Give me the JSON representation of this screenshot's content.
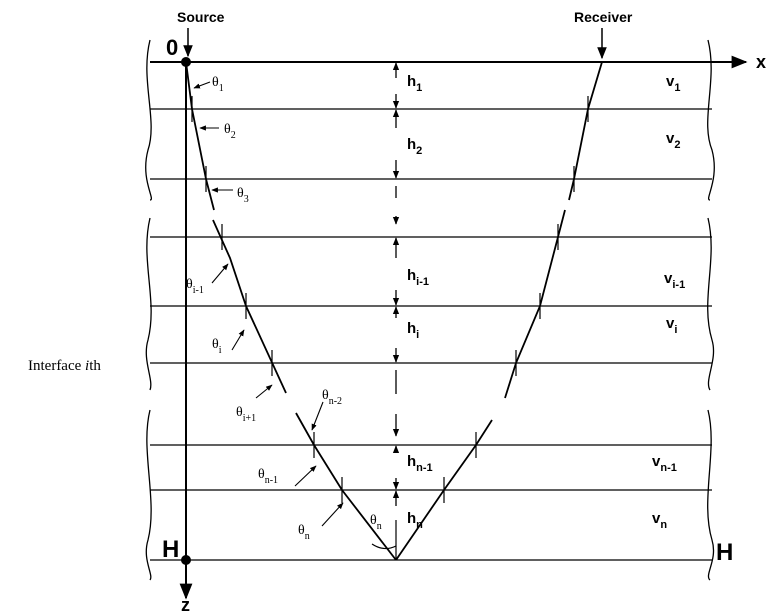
{
  "labels": {
    "source": "Source",
    "receiver": "Receiver",
    "origin": "0",
    "x_axis": "x",
    "z_axis": "z",
    "depth_left": "H",
    "depth_right": "H",
    "interface_prefix": "Interface ",
    "interface_i": "i",
    "interface_suffix": "th"
  },
  "layers": [
    {
      "h": "h",
      "h_sub": "1",
      "v": "v",
      "v_sub": "1"
    },
    {
      "h": "h",
      "h_sub": "2",
      "v": "v",
      "v_sub": "2"
    },
    {
      "h": "h",
      "h_sub": "i-1",
      "v": "v",
      "v_sub": "i-1"
    },
    {
      "h": "h",
      "h_sub": "i",
      "v": "v",
      "v_sub": "i"
    },
    {
      "h": "h",
      "h_sub": "n-1",
      "v": "v",
      "v_sub": "n-1"
    },
    {
      "h": "h",
      "h_sub": "n",
      "v": "v",
      "v_sub": "n"
    }
  ],
  "angles": [
    {
      "sym": "θ",
      "sub": "1"
    },
    {
      "sym": "θ",
      "sub": "2"
    },
    {
      "sym": "θ",
      "sub": "3"
    },
    {
      "sym": "θ",
      "sub": "i-1"
    },
    {
      "sym": "θ",
      "sub": "i"
    },
    {
      "sym": "θ",
      "sub": "i+1"
    },
    {
      "sym": "θ",
      "sub": "n-2"
    },
    {
      "sym": "θ",
      "sub": "n-1"
    },
    {
      "sym": "θ",
      "sub": "n"
    },
    {
      "sym": "θ",
      "sub": "n"
    }
  ]
}
